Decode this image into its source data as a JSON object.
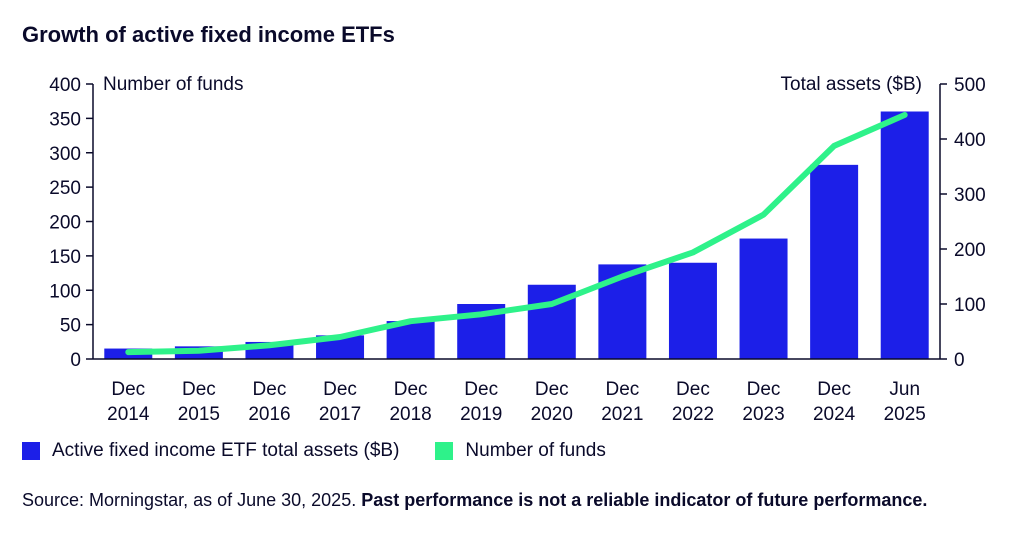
{
  "title": "Growth of active fixed income ETFs",
  "colors": {
    "bar": "#1c1fe8",
    "line": "#2ef28a",
    "axis": "#0a0a2a"
  },
  "chart_data": {
    "type": "bar+line",
    "categories": [
      [
        "Dec",
        "2014"
      ],
      [
        "Dec",
        "2015"
      ],
      [
        "Dec",
        "2016"
      ],
      [
        "Dec",
        "2017"
      ],
      [
        "Dec",
        "2018"
      ],
      [
        "Dec",
        "2019"
      ],
      [
        "Dec",
        "2020"
      ],
      [
        "Dec",
        "2021"
      ],
      [
        "Dec",
        "2022"
      ],
      [
        "Dec",
        "2023"
      ],
      [
        "Dec",
        "2024"
      ],
      [
        "Jun",
        "2025"
      ]
    ],
    "left_axis": {
      "label": "Number of funds",
      "ylim": [
        0,
        400
      ],
      "ticks": [
        0,
        50,
        100,
        150,
        200,
        250,
        300,
        350,
        400
      ]
    },
    "right_axis": {
      "label": "Total assets ($B)",
      "ylim": [
        0,
        500
      ],
      "ticks": [
        0,
        100,
        200,
        300,
        400,
        500
      ]
    },
    "series": [
      {
        "name": "Active fixed income ETF total assets ($B)",
        "type": "bar",
        "axis": "right",
        "values": [
          19,
          23,
          31,
          43,
          69,
          100,
          135,
          172,
          175,
          219,
          353,
          450
        ]
      },
      {
        "name": "Number of funds",
        "type": "line",
        "axis": "left",
        "values": [
          10,
          12,
          20,
          32,
          55,
          65,
          80,
          120,
          155,
          210,
          310,
          355
        ]
      }
    ]
  },
  "legend": {
    "bar_label": "Active fixed income ETF total assets ($B)",
    "line_label": "Number of funds"
  },
  "source": {
    "text": "Source: Morningstar, as of June 30, 2025. ",
    "bold": "Past performance is not a reliable indicator of future performance."
  }
}
